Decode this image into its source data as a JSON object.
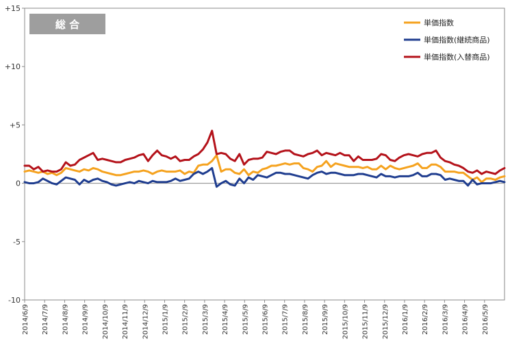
{
  "chart_data": {
    "type": "line",
    "title": "総 合",
    "ylim": [
      -10,
      15
    ],
    "yticks": [
      "+15",
      "+10",
      "+5",
      "0",
      "-5",
      "-10"
    ],
    "ytick_values": [
      15,
      10,
      5,
      0,
      -5,
      -10
    ],
    "grid": false,
    "legend_position": "top-right",
    "x_tick_labels": [
      "2014/6/9",
      "2014/7/9",
      "2014/8/9",
      "2014/9/9",
      "2014/10/9",
      "2014/11/9",
      "2014/12/9",
      "2015/1/9",
      "2015/2/9",
      "2015/3/9",
      "2015/4/9",
      "2015/5/9",
      "2015/6/9",
      "2015/7/9",
      "2015/8/9",
      "2015/9/9",
      "2015/10/9",
      "2015/11/9",
      "2015/12/9",
      "2016/1/9",
      "2016/2/9",
      "2016/3/9",
      "2016/4/9",
      "2016/5/9"
    ],
    "series": [
      {
        "name": "単価指数",
        "color": "#f5a21e",
        "values": [
          1.0,
          1.1,
          1.0,
          0.9,
          1.0,
          0.8,
          0.9,
          0.7,
          0.9,
          1.3,
          1.2,
          1.1,
          1.0,
          1.2,
          1.1,
          1.3,
          1.2,
          1.0,
          0.9,
          0.8,
          0.7,
          0.7,
          0.8,
          0.9,
          1.0,
          1.0,
          1.1,
          1.0,
          0.8,
          1.0,
          1.1,
          1.0,
          1.0,
          1.0,
          1.1,
          0.8,
          1.0,
          0.9,
          1.5,
          1.6,
          1.6,
          1.9,
          2.4,
          1.0,
          1.2,
          1.2,
          0.9,
          0.8,
          1.2,
          0.7,
          1.0,
          0.9,
          1.2,
          1.3,
          1.5,
          1.5,
          1.6,
          1.7,
          1.6,
          1.7,
          1.7,
          1.3,
          1.2,
          1.0,
          1.4,
          1.5,
          1.9,
          1.4,
          1.7,
          1.6,
          1.5,
          1.4,
          1.4,
          1.4,
          1.3,
          1.4,
          1.2,
          1.2,
          1.5,
          1.2,
          1.5,
          1.3,
          1.2,
          1.3,
          1.4,
          1.5,
          1.7,
          1.3,
          1.3,
          1.6,
          1.6,
          1.4,
          1.0,
          1.0,
          1.0,
          0.9,
          0.9,
          0.6,
          0.3,
          0.5,
          0.1,
          0.4,
          0.4,
          0.3,
          0.5,
          0.6
        ]
      },
      {
        "name": "単価指数(継続商品)",
        "color": "#1f3d8f",
        "values": [
          0.1,
          0.0,
          0.0,
          0.1,
          0.4,
          0.2,
          0.0,
          -0.1,
          0.2,
          0.5,
          0.4,
          0.3,
          -0.1,
          0.3,
          0.1,
          0.3,
          0.4,
          0.2,
          0.1,
          -0.1,
          -0.2,
          -0.1,
          0.0,
          0.1,
          0.0,
          0.2,
          0.1,
          0.0,
          0.2,
          0.1,
          0.1,
          0.1,
          0.2,
          0.4,
          0.2,
          0.3,
          0.4,
          0.8,
          1.0,
          0.8,
          1.0,
          1.3,
          -0.3,
          0.0,
          0.2,
          -0.1,
          -0.2,
          0.4,
          0.0,
          0.5,
          0.3,
          0.7,
          0.6,
          0.5,
          0.7,
          0.9,
          0.9,
          0.8,
          0.8,
          0.7,
          0.6,
          0.5,
          0.4,
          0.7,
          0.9,
          1.0,
          0.8,
          0.9,
          0.9,
          0.8,
          0.7,
          0.7,
          0.7,
          0.8,
          0.8,
          0.7,
          0.6,
          0.5,
          0.8,
          0.6,
          0.6,
          0.5,
          0.6,
          0.6,
          0.6,
          0.7,
          0.9,
          0.6,
          0.6,
          0.8,
          0.8,
          0.7,
          0.3,
          0.4,
          0.3,
          0.2,
          0.2,
          -0.2,
          0.3,
          -0.1,
          0.0,
          0.0,
          0.0,
          0.1,
          0.2,
          0.1
        ]
      },
      {
        "name": "単価指数(入替商品)",
        "color": "#b4121a",
        "values": [
          1.5,
          1.5,
          1.2,
          1.4,
          1.0,
          1.1,
          1.0,
          1.0,
          1.2,
          1.8,
          1.5,
          1.6,
          2.0,
          2.2,
          2.4,
          2.6,
          2.0,
          2.1,
          2.0,
          1.9,
          1.8,
          1.8,
          2.0,
          2.1,
          2.2,
          2.4,
          2.5,
          1.9,
          2.4,
          2.8,
          2.4,
          2.3,
          2.1,
          2.3,
          1.9,
          2.0,
          2.0,
          2.3,
          2.5,
          2.9,
          3.5,
          4.5,
          2.5,
          2.6,
          2.5,
          2.1,
          1.9,
          2.5,
          1.6,
          2.0,
          2.1,
          2.1,
          2.2,
          2.7,
          2.6,
          2.5,
          2.7,
          2.8,
          2.8,
          2.5,
          2.4,
          2.3,
          2.5,
          2.6,
          2.8,
          2.4,
          2.6,
          2.5,
          2.4,
          2.6,
          2.4,
          2.4,
          1.9,
          2.3,
          2.0,
          2.0,
          2.0,
          2.1,
          2.5,
          2.4,
          2.0,
          1.9,
          2.2,
          2.4,
          2.5,
          2.4,
          2.3,
          2.5,
          2.6,
          2.6,
          2.8,
          2.2,
          1.9,
          1.8,
          1.6,
          1.5,
          1.3,
          1.0,
          0.9,
          1.1,
          0.8,
          1.0,
          0.9,
          0.8,
          1.1,
          1.3
        ]
      }
    ]
  }
}
